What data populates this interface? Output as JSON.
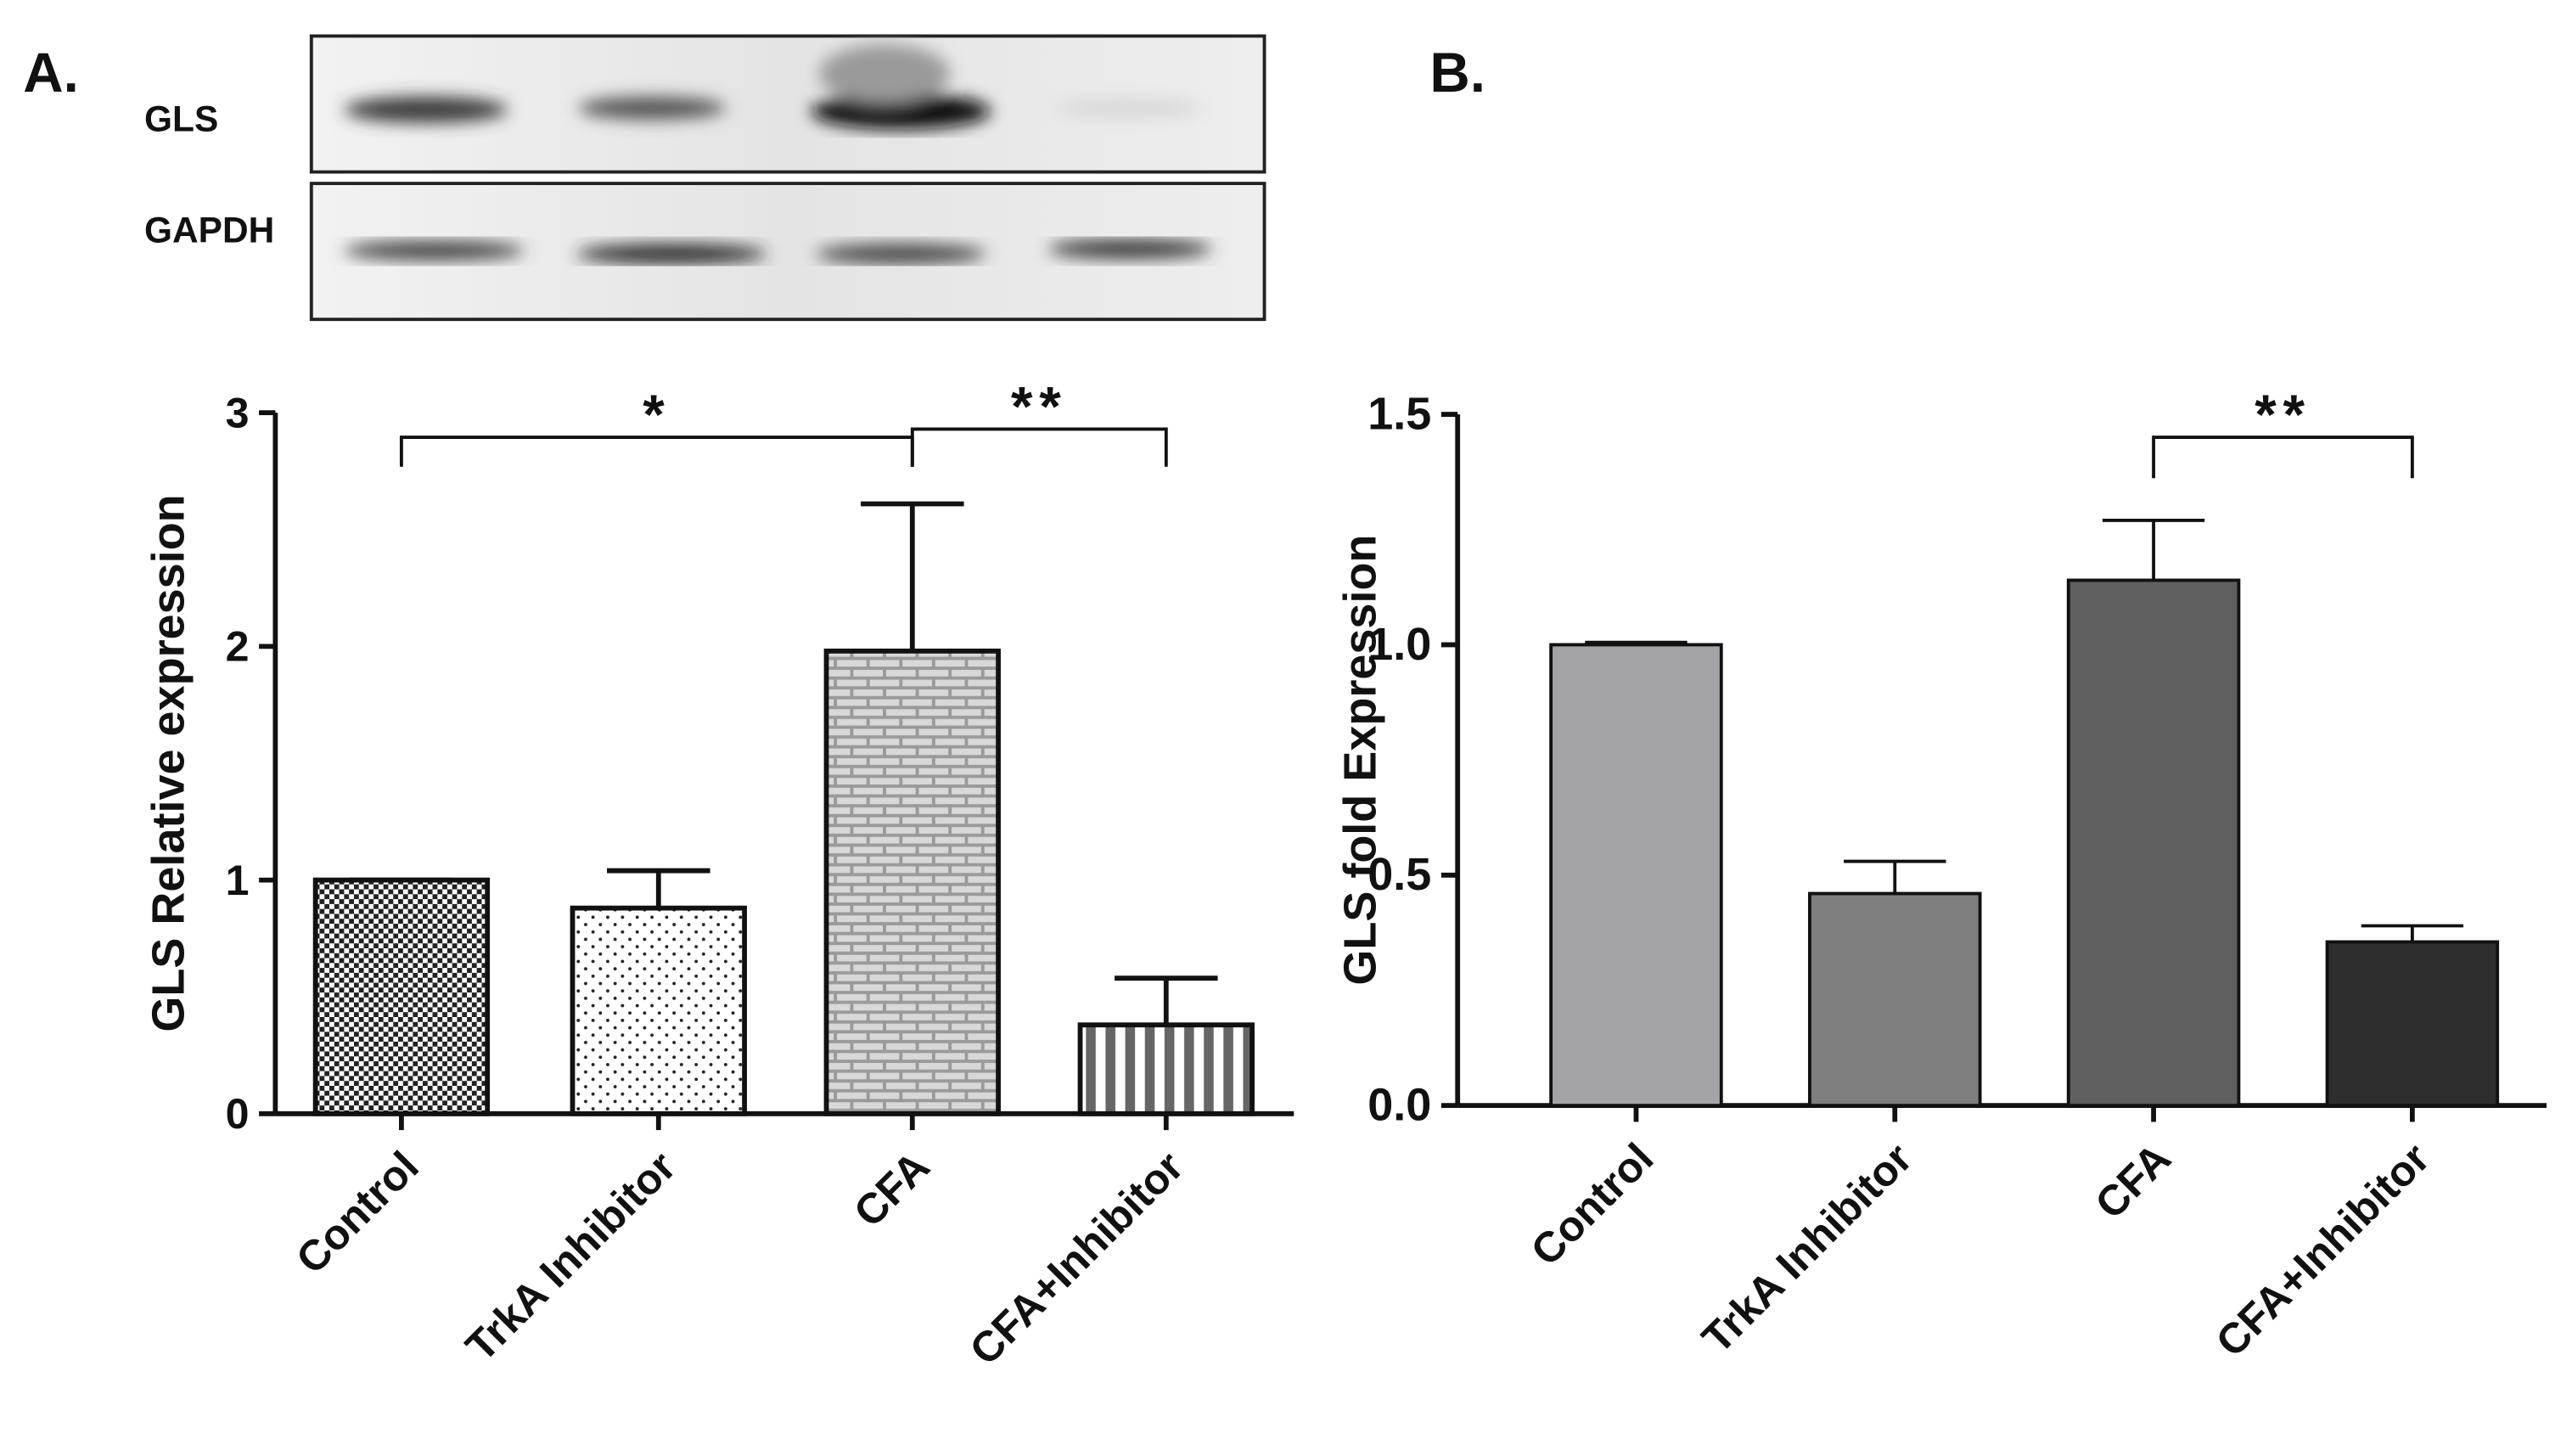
{
  "panel_labels": [
    "A.",
    "B."
  ],
  "blot": {
    "rows": [
      "GLS",
      "GAPDH"
    ]
  },
  "chart_data": [
    {
      "type": "bar",
      "ylabel": "GLS Relative expression",
      "categories": [
        "Control",
        "TrkA Inhibitor",
        "CFA",
        "CFA+Inhibitor"
      ],
      "values": [
        1.0,
        0.88,
        1.98,
        0.38
      ],
      "errors": [
        0,
        0.16,
        0.63,
        0.2
      ],
      "fills": [
        "checker",
        "dots",
        "bricks",
        "stripes"
      ],
      "ylim": [
        0,
        3
      ],
      "yticks": [
        0,
        1,
        2,
        3
      ],
      "significance": [
        "*",
        "**"
      ]
    },
    {
      "type": "bar",
      "ylabel": "GLS fold Expression",
      "categories": [
        "Control",
        "TrkA Inhibitor",
        "CFA",
        "CFA+Inhibitor"
      ],
      "values": [
        1.0,
        0.46,
        1.14,
        0.355
      ],
      "errors": [
        0.005,
        0.07,
        0.13,
        0.035
      ],
      "colors": [
        "#a4a4a8",
        "#7f7f7f",
        "#5f5f5f",
        "#2e2e2e"
      ],
      "ylim": [
        0,
        1.5
      ],
      "yticks": [
        {
          "value": 0,
          "label": "0.0"
        },
        0.5,
        {
          "value": 1,
          "label": "1.0"
        },
        1.5
      ],
      "significance": [
        "**"
      ]
    }
  ]
}
